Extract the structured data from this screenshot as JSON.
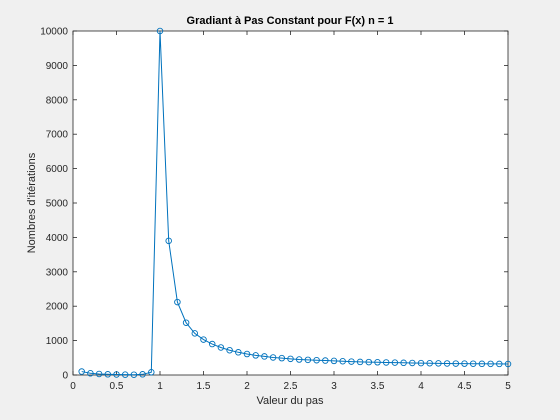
{
  "chart_data": {
    "type": "line",
    "title": "Gradiant à Pas Constant pour F(x) n = 1",
    "xlabel": "Valeur du pas",
    "ylabel": "Nombres d'itérations",
    "xlim": [
      0,
      5
    ],
    "ylim": [
      0,
      10000
    ],
    "xticks": [
      "0",
      "0.5",
      "1",
      "1.5",
      "2",
      "2.5",
      "3",
      "3.5",
      "4",
      "4.5",
      "5"
    ],
    "yticks": [
      "0",
      "1000",
      "2000",
      "3000",
      "4000",
      "5000",
      "6000",
      "7000",
      "8000",
      "9000",
      "10000"
    ],
    "grid": false,
    "marker": "circle",
    "color": "#0072BD",
    "x": [
      0.1,
      0.2,
      0.3,
      0.4,
      0.5,
      0.6,
      0.7,
      0.8,
      0.9,
      1.0,
      1.1,
      1.2,
      1.3,
      1.4,
      1.5,
      1.6,
      1.7,
      1.8,
      1.9,
      2.0,
      2.1,
      2.2,
      2.3,
      2.4,
      2.5,
      2.6,
      2.7,
      2.8,
      2.9,
      3.0,
      3.1,
      3.2,
      3.3,
      3.4,
      3.5,
      3.6,
      3.7,
      3.8,
      3.9,
      4.0,
      4.1,
      4.2,
      4.3,
      4.4,
      4.5,
      4.6,
      4.7,
      4.8,
      4.9,
      5.0
    ],
    "y": [
      100,
      50,
      30,
      20,
      15,
      10,
      8,
      20,
      80,
      10000,
      3900,
      2120,
      1520,
      1210,
      1030,
      900,
      800,
      720,
      660,
      610,
      570,
      540,
      510,
      490,
      470,
      450,
      440,
      430,
      420,
      410,
      400,
      390,
      380,
      375,
      370,
      365,
      360,
      355,
      350,
      345,
      342,
      338,
      335,
      332,
      330,
      328,
      326,
      324,
      322,
      320
    ]
  }
}
